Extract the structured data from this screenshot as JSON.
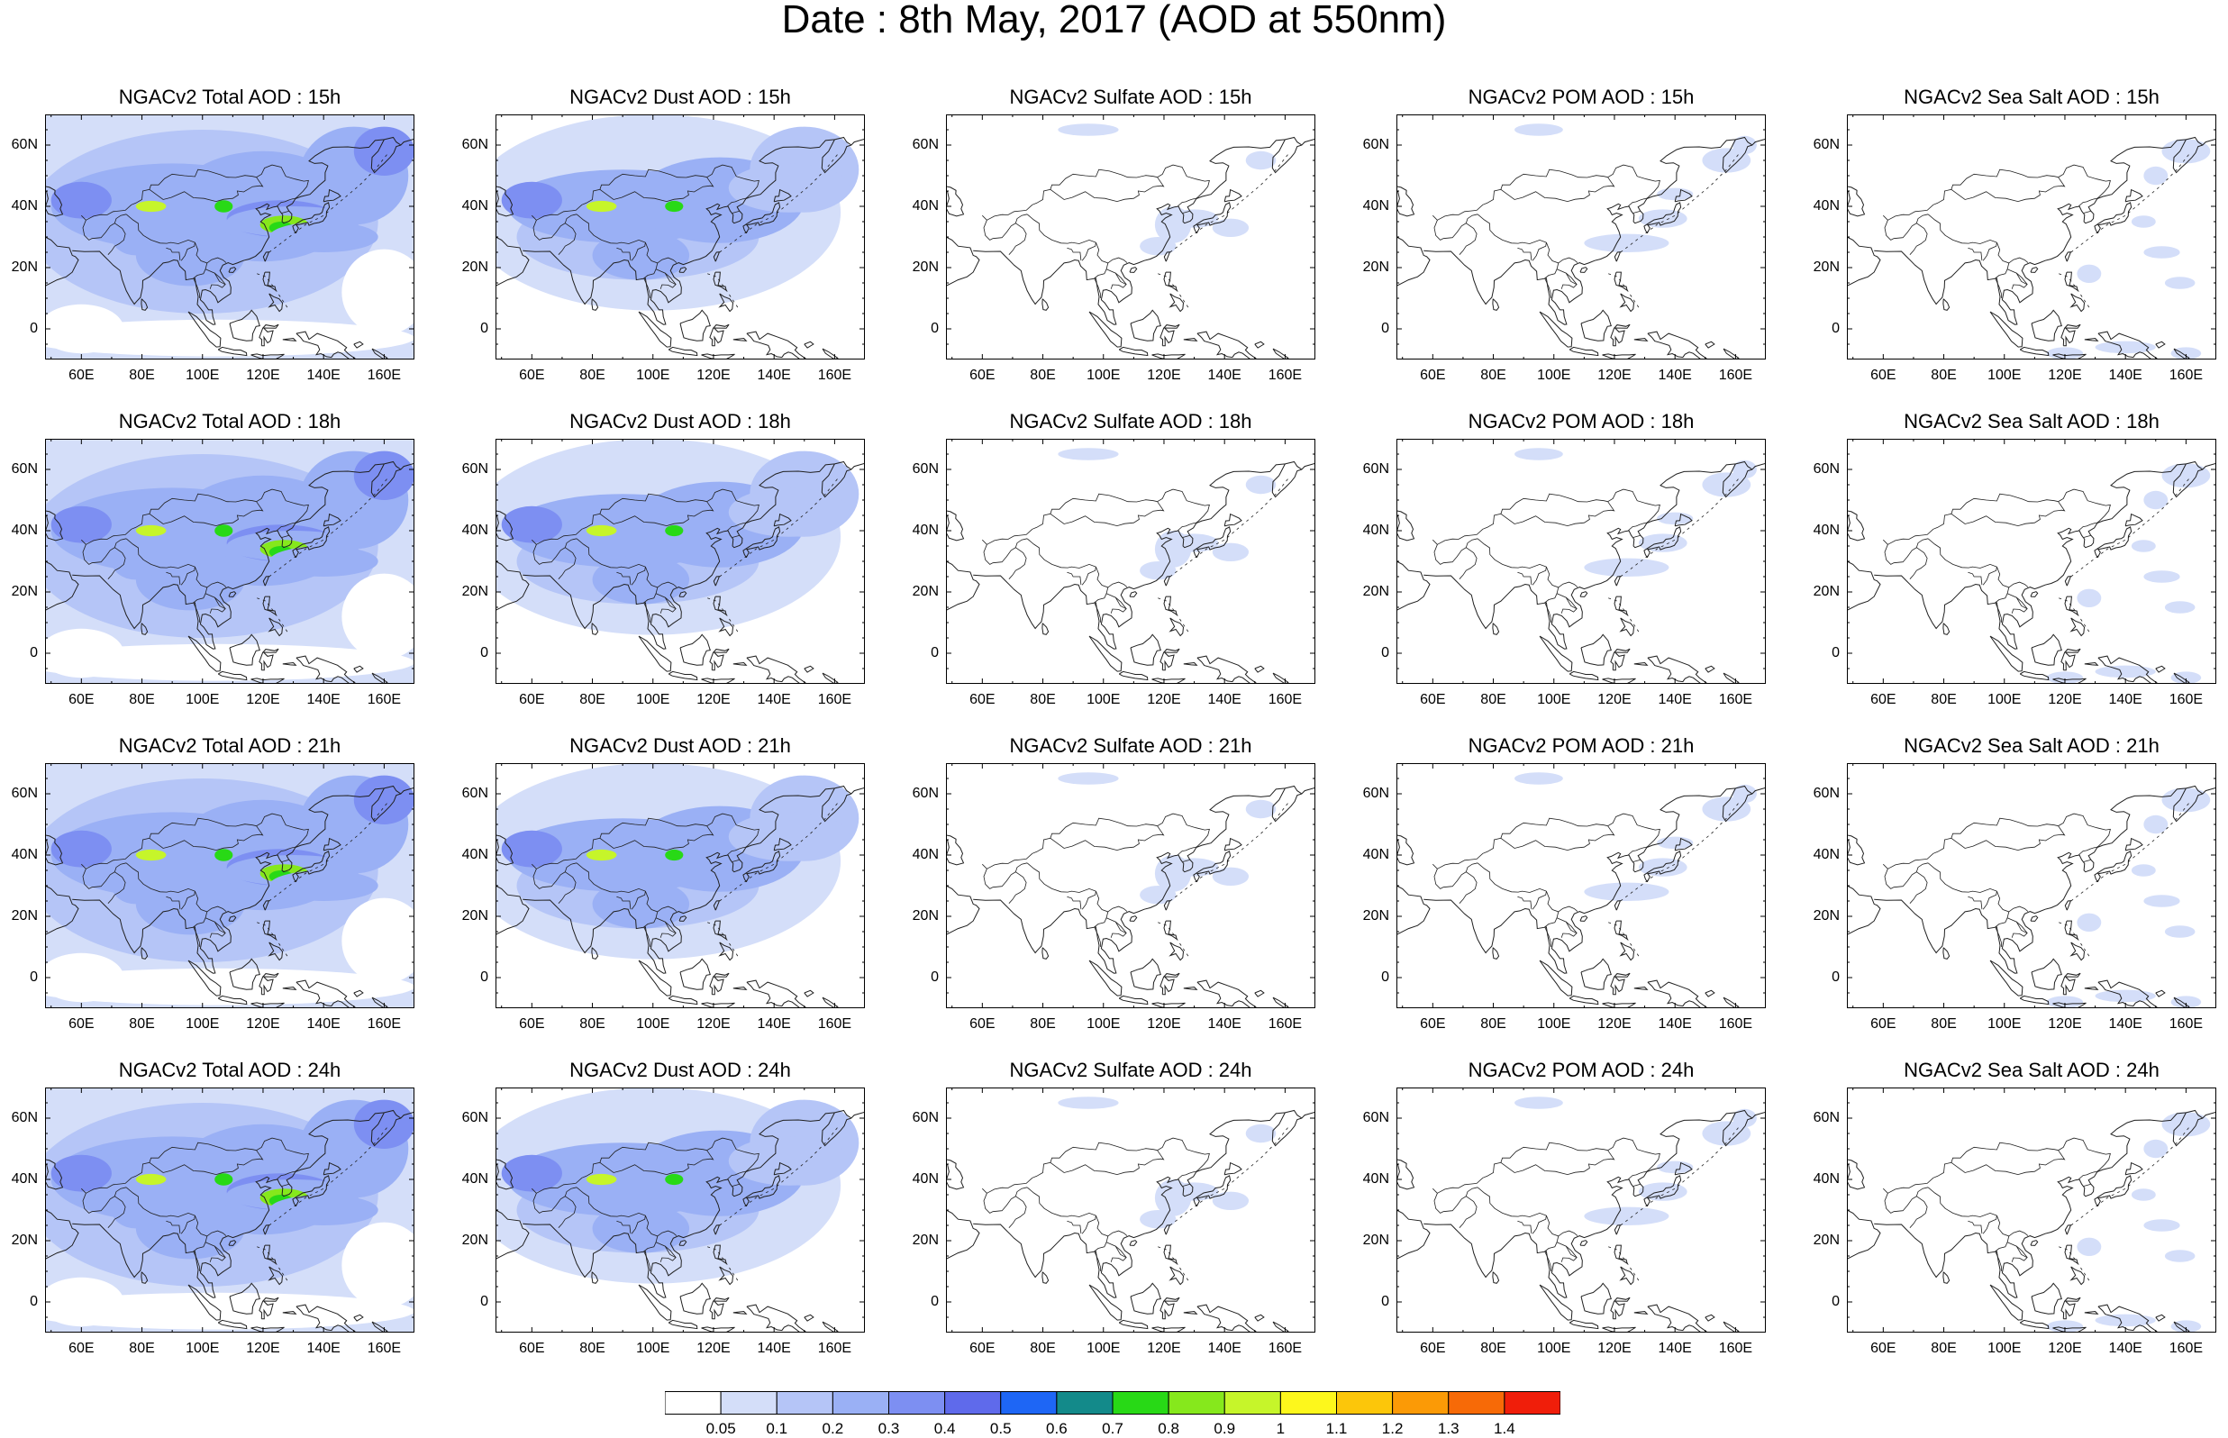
{
  "title": "Date : 8th May, 2017 (AOD at 550nm)",
  "panels": [
    [
      "NGACv2 Total AOD : 15h",
      "NGACv2 Dust AOD : 15h",
      "NGACv2 Sulfate AOD : 15h",
      "NGACv2 POM AOD : 15h",
      "NGACv2 Sea Salt AOD : 15h"
    ],
    [
      "NGACv2 Total AOD : 18h",
      "NGACv2 Dust AOD : 18h",
      "NGACv2 Sulfate AOD : 18h",
      "NGACv2 POM AOD : 18h",
      "NGACv2 Sea Salt AOD : 18h"
    ],
    [
      "NGACv2 Total AOD : 21h",
      "NGACv2 Dust AOD : 21h",
      "NGACv2 Sulfate AOD : 21h",
      "NGACv2 POM AOD : 21h",
      "NGACv2 Sea Salt AOD : 21h"
    ],
    [
      "NGACv2 Total AOD : 24h",
      "NGACv2 Dust AOD : 24h",
      "NGACv2 Sulfate AOD : 24h",
      "NGACv2 POM AOD : 24h",
      "NGACv2 Sea Salt  AOD : 24h"
    ]
  ],
  "panel_kinds": [
    "total",
    "dust",
    "sulfate",
    "pom",
    "seasalt"
  ],
  "y_tick_labels": [
    "60N",
    "40N",
    "20N",
    "0"
  ],
  "x_tick_labels": [
    "60E",
    "80E",
    "100E",
    "120E",
    "140E",
    "160E"
  ],
  "lon_range": [
    48,
    170
  ],
  "lat_range": [
    -10,
    70
  ],
  "colorbar": {
    "labels": [
      "0.05",
      "0.1",
      "0.2",
      "0.3",
      "0.4",
      "0.5",
      "0.6",
      "0.7",
      "0.8",
      "0.9",
      "1",
      "1.1",
      "1.2",
      "1.3",
      "1.4"
    ],
    "colors": [
      "#ffffff",
      "#d4def9",
      "#b5c5f7",
      "#9ab0f5",
      "#7d8ff2",
      "#5f6aeb",
      "#1e66f5",
      "#138a8a",
      "#28d916",
      "#86e81c",
      "#c6f52a",
      "#fdf71c",
      "#fcc60a",
      "#fb9a06",
      "#f76a07",
      "#f01e0a"
    ]
  },
  "colors": {
    "coast": "#202020",
    "frame": "#000000"
  }
}
